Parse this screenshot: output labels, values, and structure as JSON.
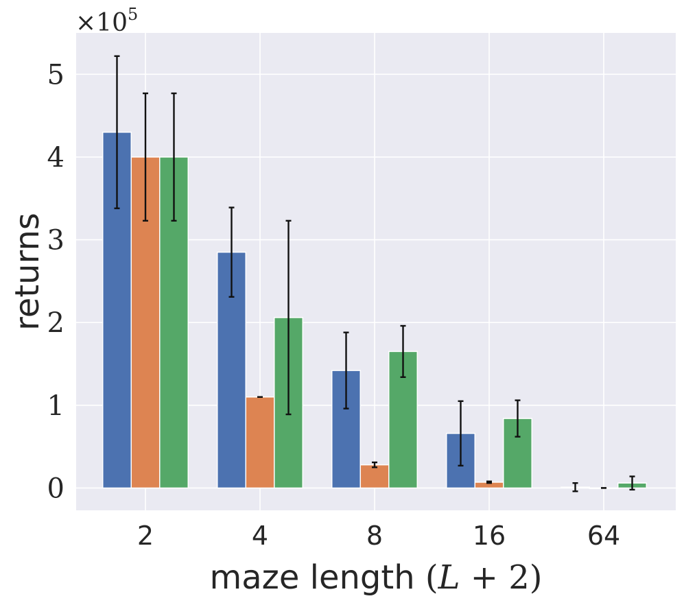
{
  "chart_data": {
    "type": "bar",
    "categories": [
      "2",
      "4",
      "8",
      "16",
      "64"
    ],
    "series": [
      {
        "color": "#4c72b0",
        "values": [
          4.3,
          2.85,
          1.42,
          0.66,
          0.01
        ],
        "err": [
          0.92,
          0.54,
          0.46,
          0.39,
          0.05
        ]
      },
      {
        "color": "#dd8452",
        "values": [
          4.0,
          1.1,
          0.28,
          0.07,
          0.0
        ],
        "err": [
          0.77,
          0.0,
          0.03,
          0.01,
          0.0
        ]
      },
      {
        "color": "#55a868",
        "values": [
          4.0,
          2.06,
          1.65,
          0.84,
          0.06
        ],
        "err": [
          0.77,
          1.17,
          0.31,
          0.22,
          0.08
        ]
      }
    ],
    "ylim": [
      -0.27,
      5.5
    ],
    "yticks": [
      0,
      1,
      2,
      3,
      4,
      5
    ],
    "y_offset": {
      "base": "×10",
      "exponent": "5"
    },
    "ylabel": "returns",
    "xlabel": {
      "text": "maze length ",
      "math_open": "(",
      "math_var": "L",
      "math_rest": " + 2",
      "math_close": ")"
    },
    "grid": true
  }
}
